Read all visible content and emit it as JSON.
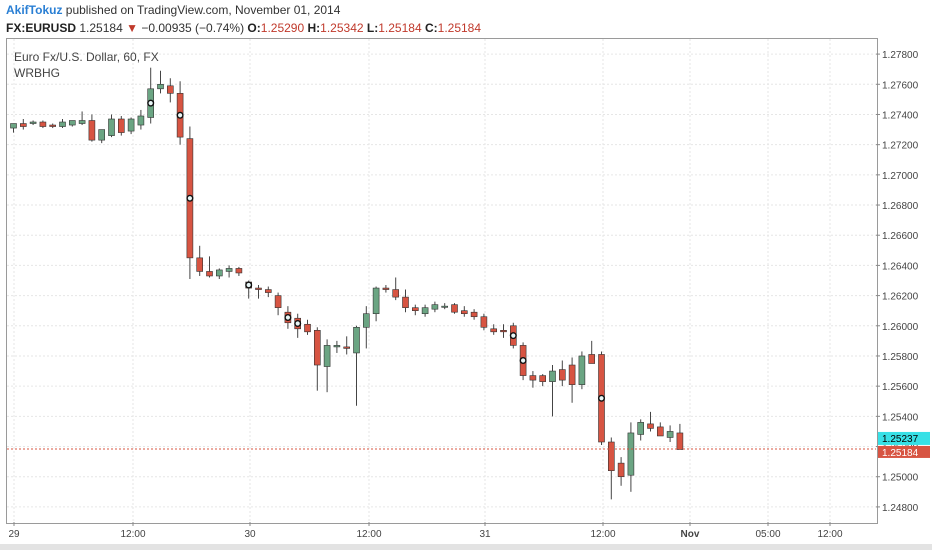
{
  "header": {
    "author": "AkifTokuz",
    "published_text": " published on TradingView.com, November 01, 2014"
  },
  "ticker": {
    "symbol": "FX:EURUSD",
    "last": "1.25184",
    "arrow": "▼",
    "change": "−0.00935 (−0.74%)",
    "o_label": "O:",
    "o_value": "1.25290",
    "h_label": "H:",
    "h_value": "1.25342",
    "l_label": "L:",
    "l_value": "1.25184",
    "c_label": "C:",
    "c_value": "1.25184"
  },
  "chart_title": "Euro Fx/U.S. Dollar, 60, FX",
  "indicator": "WRBHG",
  "colors": {
    "up": "#6ba583",
    "down": "#d75442",
    "grid": "#e6e6e6",
    "price_line": "#d75442",
    "marker": "#0a8a8a"
  },
  "chart_data": {
    "type": "candlestick",
    "ylim": [
      1.247,
      1.279
    ],
    "y_ticks": [
      "1.27800",
      "1.27600",
      "1.27400",
      "1.27200",
      "1.27000",
      "1.26800",
      "1.26600",
      "1.26400",
      "1.26200",
      "1.26000",
      "1.25800",
      "1.25600",
      "1.25400",
      "1.25200",
      "1.25000",
      "1.24800"
    ],
    "x_ticks": [
      "29",
      "12:00",
      "30",
      "12:00",
      "31",
      "12:00",
      "Nov",
      "05:00",
      "12:00"
    ],
    "last_price_label": "1.25237",
    "current_price_label": "1.25184",
    "current_price": 1.25184,
    "last_price": 1.25237,
    "candles": [
      {
        "o": 1.2731,
        "h": 1.2734,
        "l": 1.2728,
        "c": 1.2734
      },
      {
        "o": 1.2734,
        "h": 1.2737,
        "l": 1.273,
        "c": 1.2732
      },
      {
        "o": 1.2734,
        "h": 1.2736,
        "l": 1.2733,
        "c": 1.2735
      },
      {
        "o": 1.2735,
        "h": 1.2736,
        "l": 1.2731,
        "c": 1.2732
      },
      {
        "o": 1.2733,
        "h": 1.2734,
        "l": 1.2731,
        "c": 1.2732
      },
      {
        "o": 1.2732,
        "h": 1.2737,
        "l": 1.2731,
        "c": 1.2735
      },
      {
        "o": 1.2733,
        "h": 1.2736,
        "l": 1.2732,
        "c": 1.2736
      },
      {
        "o": 1.2734,
        "h": 1.2742,
        "l": 1.2733,
        "c": 1.2736
      },
      {
        "o": 1.2736,
        "h": 1.274,
        "l": 1.2722,
        "c": 1.2723
      },
      {
        "o": 1.2723,
        "h": 1.273,
        "l": 1.2721,
        "c": 1.273
      },
      {
        "o": 1.2726,
        "h": 1.274,
        "l": 1.2725,
        "c": 1.2737
      },
      {
        "o": 1.2737,
        "h": 1.2739,
        "l": 1.2726,
        "c": 1.2728
      },
      {
        "o": 1.2729,
        "h": 1.2738,
        "l": 1.2727,
        "c": 1.2737
      },
      {
        "o": 1.2733,
        "h": 1.2743,
        "l": 1.273,
        "c": 1.2739
      },
      {
        "o": 1.2738,
        "h": 1.2771,
        "l": 1.2734,
        "c": 1.2757
      },
      {
        "o": 1.2757,
        "h": 1.2769,
        "l": 1.2754,
        "c": 1.276
      },
      {
        "o": 1.2759,
        "h": 1.2764,
        "l": 1.2748,
        "c": 1.2754
      },
      {
        "o": 1.2754,
        "h": 1.2762,
        "l": 1.272,
        "c": 1.2725
      },
      {
        "o": 1.2724,
        "h": 1.2732,
        "l": 1.2631,
        "c": 1.2645
      },
      {
        "o": 1.2645,
        "h": 1.2653,
        "l": 1.2633,
        "c": 1.2636
      },
      {
        "o": 1.2636,
        "h": 1.2646,
        "l": 1.2632,
        "c": 1.2633
      },
      {
        "o": 1.2633,
        "h": 1.2638,
        "l": 1.2631,
        "c": 1.2637
      },
      {
        "o": 1.2636,
        "h": 1.264,
        "l": 1.2632,
        "c": 1.2638
      },
      {
        "o": 1.2638,
        "h": 1.2639,
        "l": 1.2633,
        "c": 1.2635
      },
      {
        "o": 1.2629,
        "h": 1.263,
        "l": 1.2618,
        "c": 1.2625
      },
      {
        "o": 1.2625,
        "h": 1.2627,
        "l": 1.2618,
        "c": 1.2624
      },
      {
        "o": 1.2624,
        "h": 1.2626,
        "l": 1.2619,
        "c": 1.2622
      },
      {
        "o": 1.262,
        "h": 1.2622,
        "l": 1.2607,
        "c": 1.2612
      },
      {
        "o": 1.2609,
        "h": 1.2613,
        "l": 1.2598,
        "c": 1.2602
      },
      {
        "o": 1.2605,
        "h": 1.2608,
        "l": 1.2592,
        "c": 1.2598
      },
      {
        "o": 1.2601,
        "h": 1.2604,
        "l": 1.2594,
        "c": 1.2596
      },
      {
        "o": 1.2597,
        "h": 1.2599,
        "l": 1.2557,
        "c": 1.2574
      },
      {
        "o": 1.2573,
        "h": 1.2591,
        "l": 1.2556,
        "c": 1.2587
      },
      {
        "o": 1.2586,
        "h": 1.259,
        "l": 1.2582,
        "c": 1.2587
      },
      {
        "o": 1.2586,
        "h": 1.2593,
        "l": 1.2581,
        "c": 1.2585
      },
      {
        "o": 1.2582,
        "h": 1.26,
        "l": 1.2547,
        "c": 1.2599
      },
      {
        "o": 1.2599,
        "h": 1.2613,
        "l": 1.2585,
        "c": 1.2608
      },
      {
        "o": 1.2608,
        "h": 1.2626,
        "l": 1.2603,
        "c": 1.2625
      },
      {
        "o": 1.2625,
        "h": 1.2627,
        "l": 1.2622,
        "c": 1.2624
      },
      {
        "o": 1.2624,
        "h": 1.2632,
        "l": 1.2617,
        "c": 1.2619
      },
      {
        "o": 1.2619,
        "h": 1.2624,
        "l": 1.2609,
        "c": 1.2612
      },
      {
        "o": 1.2612,
        "h": 1.2614,
        "l": 1.2607,
        "c": 1.261
      },
      {
        "o": 1.2608,
        "h": 1.2614,
        "l": 1.2606,
        "c": 1.2612
      },
      {
        "o": 1.2611,
        "h": 1.2616,
        "l": 1.2609,
        "c": 1.2614
      },
      {
        "o": 1.2613,
        "h": 1.2615,
        "l": 1.2611,
        "c": 1.2613
      },
      {
        "o": 1.2614,
        "h": 1.2615,
        "l": 1.2608,
        "c": 1.2609
      },
      {
        "o": 1.261,
        "h": 1.2613,
        "l": 1.2606,
        "c": 1.2608
      },
      {
        "o": 1.2609,
        "h": 1.2611,
        "l": 1.2604,
        "c": 1.2606
      },
      {
        "o": 1.2606,
        "h": 1.2608,
        "l": 1.2597,
        "c": 1.2599
      },
      {
        "o": 1.2598,
        "h": 1.2601,
        "l": 1.2594,
        "c": 1.2596
      },
      {
        "o": 1.2597,
        "h": 1.2601,
        "l": 1.2592,
        "c": 1.2596
      },
      {
        "o": 1.26,
        "h": 1.2602,
        "l": 1.2585,
        "c": 1.2587
      },
      {
        "o": 1.2587,
        "h": 1.2589,
        "l": 1.2564,
        "c": 1.2567
      },
      {
        "o": 1.2567,
        "h": 1.257,
        "l": 1.2559,
        "c": 1.2564
      },
      {
        "o": 1.2567,
        "h": 1.2568,
        "l": 1.256,
        "c": 1.2563
      },
      {
        "o": 1.2563,
        "h": 1.2574,
        "l": 1.254,
        "c": 1.257
      },
      {
        "o": 1.2571,
        "h": 1.2577,
        "l": 1.256,
        "c": 1.2564
      },
      {
        "o": 1.2574,
        "h": 1.2579,
        "l": 1.2549,
        "c": 1.2561
      },
      {
        "o": 1.2561,
        "h": 1.2583,
        "l": 1.2558,
        "c": 1.258
      },
      {
        "o": 1.2581,
        "h": 1.259,
        "l": 1.2575,
        "c": 1.2575
      },
      {
        "o": 1.2581,
        "h": 1.2583,
        "l": 1.2521,
        "c": 1.2523
      },
      {
        "o": 1.2523,
        "h": 1.2526,
        "l": 1.2485,
        "c": 1.2504
      },
      {
        "o": 1.2509,
        "h": 1.2513,
        "l": 1.2494,
        "c": 1.25
      },
      {
        "o": 1.2501,
        "h": 1.2536,
        "l": 1.249,
        "c": 1.2529
      },
      {
        "o": 1.2528,
        "h": 1.2538,
        "l": 1.2524,
        "c": 1.2536
      },
      {
        "o": 1.2535,
        "h": 1.2543,
        "l": 1.253,
        "c": 1.2532
      },
      {
        "o": 1.2533,
        "h": 1.2536,
        "l": 1.2527,
        "c": 1.2527
      },
      {
        "o": 1.2526,
        "h": 1.2534,
        "l": 1.2523,
        "c": 1.253
      },
      {
        "o": 1.2529,
        "h": 1.2535,
        "l": 1.2518,
        "c": 1.2518
      }
    ],
    "marker_indices": [
      14,
      17,
      18,
      24,
      28,
      29,
      51,
      52,
      60
    ]
  }
}
